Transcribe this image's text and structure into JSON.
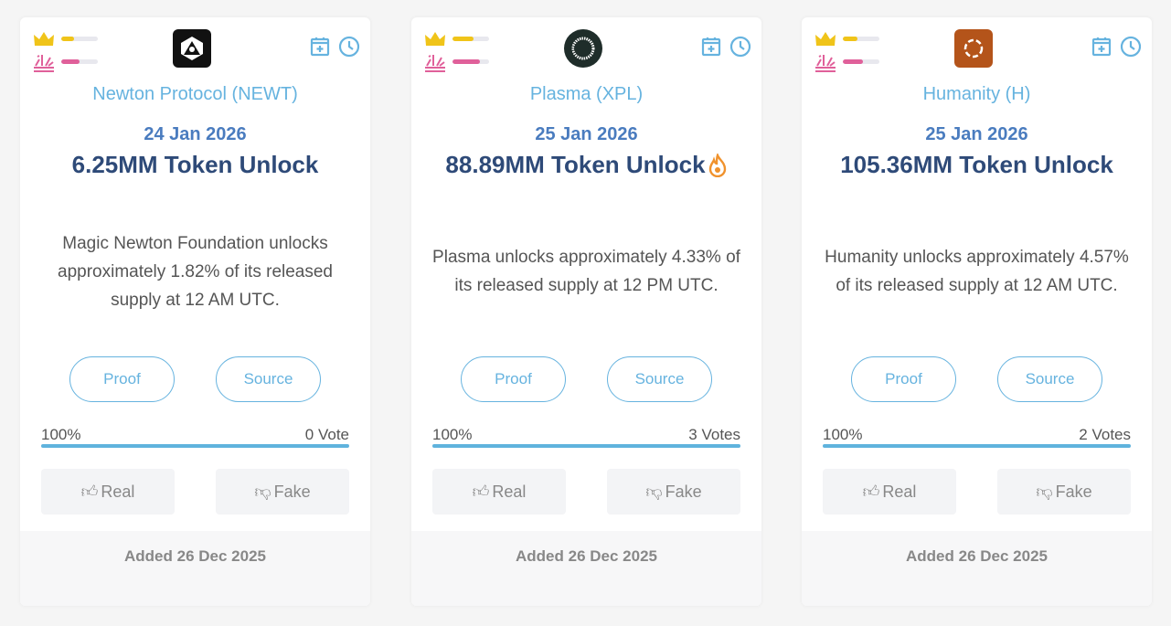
{
  "colors": {
    "accent": "#66b3df",
    "crown": "#f0c419",
    "explosion": "#e0609a",
    "title": "#2e4a78",
    "date": "#4a7cbf",
    "fire": "#f0922d"
  },
  "cards": [
    {
      "name": "Newton Protocol (NEWT)",
      "date": "24 Jan 2026",
      "title": "6.25MM Token Unlock",
      "hot": false,
      "description": "Magic Newton Foundation unlocks approximately 1.82% of its released supply at 12 AM UTC.",
      "proof": "Proof",
      "source": "Source",
      "percent": "100%",
      "votes": "0 Vote",
      "real": "Real",
      "fake": "Fake",
      "added": "Added 26 Dec 2025",
      "crown_level": 35,
      "explosion_level": 50,
      "logo_bg": "#111111",
      "logo_icon": "newton-logo"
    },
    {
      "name": "Plasma (XPL)",
      "date": "25 Jan 2026",
      "title": "88.89MM Token Unlock",
      "hot": true,
      "description": "Plasma unlocks approximately 4.33% of its released supply at 12 PM UTC.",
      "proof": "Proof",
      "source": "Source",
      "percent": "100%",
      "votes": "3 Votes",
      "real": "Real",
      "fake": "Fake",
      "added": "Added 26 Dec 2025",
      "crown_level": 58,
      "explosion_level": 75,
      "logo_bg": "#1f2d2a",
      "logo_icon": "plasma-logo"
    },
    {
      "name": "Humanity (H)",
      "date": "25 Jan 2026",
      "title": "105.36MM Token Unlock",
      "hot": false,
      "description": "Humanity unlocks approximately 4.57% of its released supply at 12 AM UTC.",
      "proof": "Proof",
      "source": "Source",
      "percent": "100%",
      "votes": "2 Votes",
      "real": "Real",
      "fake": "Fake",
      "added": "Added 26 Dec 2025",
      "crown_level": 40,
      "explosion_level": 55,
      "logo_bg": "#b4541a",
      "logo_icon": "humanity-logo"
    }
  ]
}
